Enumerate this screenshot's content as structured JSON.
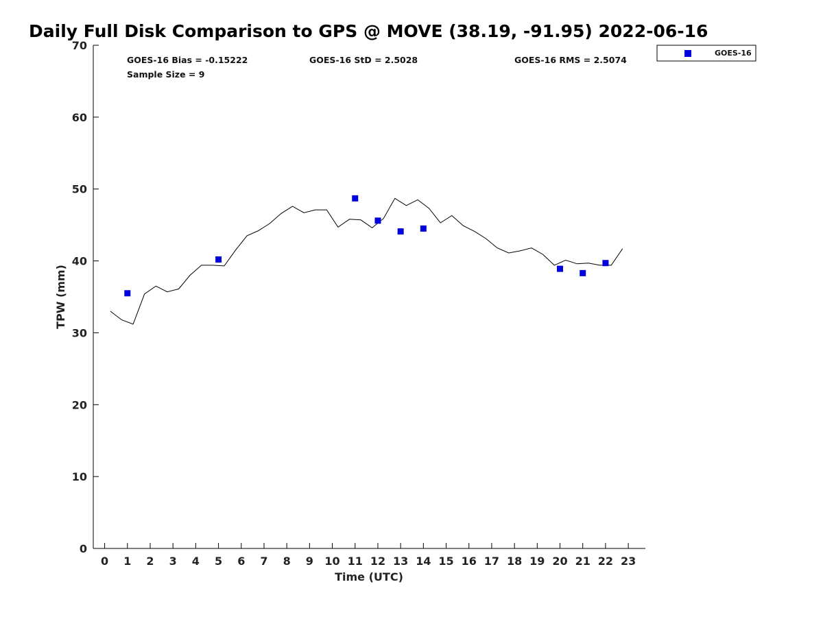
{
  "chart_data": {
    "type": "line",
    "title": "Daily Full Disk Comparison to GPS @ MOVE (38.19, -91.95) 2022-06-16",
    "xlabel": "Time (UTC)",
    "ylabel": "TPW (mm)",
    "xlim": [
      -0.5,
      23.75
    ],
    "ylim": [
      0,
      70
    ],
    "x_ticks": [
      "0",
      "1",
      "2",
      "3",
      "4",
      "5",
      "6",
      "7",
      "8",
      "9",
      "10",
      "11",
      "12",
      "13",
      "14",
      "15",
      "16",
      "17",
      "18",
      "19",
      "20",
      "21",
      "22",
      "23"
    ],
    "y_ticks": [
      "0",
      "10",
      "20",
      "30",
      "40",
      "50",
      "60",
      "70"
    ],
    "grid": false,
    "legend_position": "top-right",
    "stats": {
      "bias": "GOES-16 Bias = -0.15222",
      "std": "GOES-16 StD = 2.5028",
      "rms": "GOES-16 RMS = 2.5074",
      "sample": "Sample Size = 9"
    },
    "series": [
      {
        "kind": "line",
        "color": "#000000",
        "x": [
          0.25,
          0.75,
          1.25,
          1.75,
          2.25,
          2.75,
          3.25,
          3.75,
          4.25,
          4.75,
          5.25,
          5.75,
          6.25,
          6.75,
          7.25,
          7.75,
          8.25,
          8.75,
          9.25,
          9.75,
          10.25,
          10.75,
          11.25,
          11.75,
          12.25,
          12.75,
          13.25,
          13.75,
          14.25,
          14.75,
          15.25,
          15.75,
          16.25,
          16.75,
          17.25,
          17.75,
          18.25,
          18.75,
          19.25,
          19.75,
          20.25,
          20.75,
          21.25,
          21.75,
          22.25,
          22.75
        ],
        "values": [
          33.0,
          31.8,
          31.2,
          35.4,
          36.5,
          35.7,
          36.1,
          38.0,
          39.4,
          39.4,
          39.3,
          41.5,
          43.5,
          44.2,
          45.2,
          46.6,
          47.6,
          46.7,
          47.1,
          47.1,
          44.7,
          45.8,
          45.7,
          44.6,
          45.9,
          48.7,
          47.7,
          48.5,
          47.3,
          45.3,
          46.3,
          44.9,
          44.1,
          43.1,
          41.8,
          41.1,
          41.4,
          41.8,
          40.9,
          39.4,
          40.1,
          39.6,
          39.7,
          39.4,
          39.4,
          41.7
        ]
      },
      {
        "kind": "scatter",
        "name": "GOES-16",
        "color": "#0000dd",
        "x": [
          1,
          5,
          11,
          12,
          13,
          14,
          20,
          21,
          22
        ],
        "values": [
          35.5,
          40.2,
          48.7,
          45.6,
          44.1,
          44.5,
          38.9,
          38.3,
          39.7
        ]
      }
    ]
  }
}
